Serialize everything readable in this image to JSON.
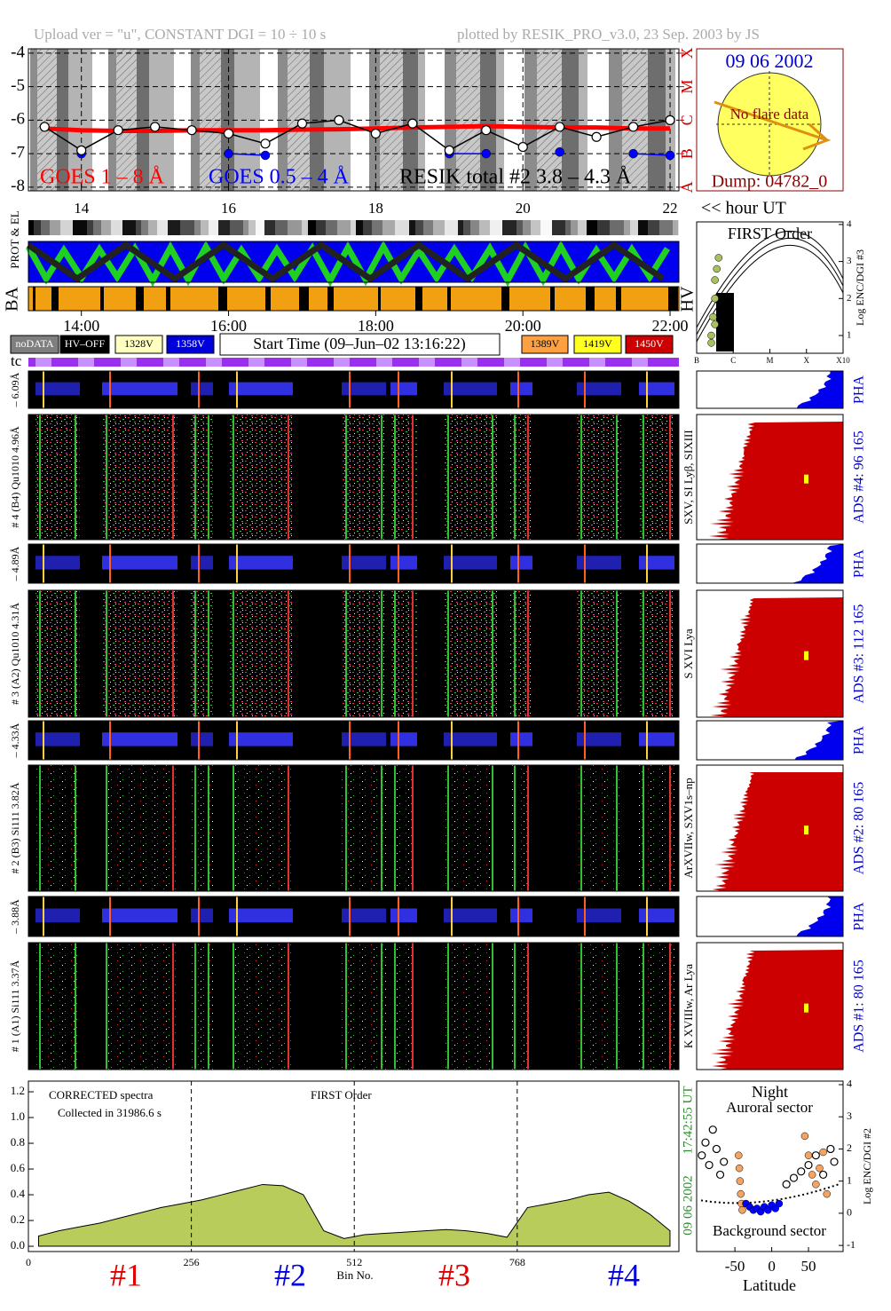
{
  "header": {
    "upload": "Upload ver = \"u\", CONSTANT  DGI =  10 ÷  10 s",
    "plotted": "plotted by RESIK_PRO_v3.0, 23 Sep. 2003 by JS"
  },
  "chart_data": [
    {
      "type": "line",
      "xlabel": "<< hour UT",
      "grid": true,
      "x": [
        13.5,
        14,
        14.5,
        15,
        15.5,
        16,
        16.5,
        17,
        17.5,
        18,
        18.5,
        19,
        19.5,
        20,
        20.5,
        21,
        21.5,
        22
      ],
      "series": [
        {
          "name": "GOES 1 – 8 Å",
          "color": "#ff0000",
          "marker": "none",
          "values": [
            -6.25,
            -6.3,
            -6.32,
            -6.32,
            -6.3,
            -6.3,
            -6.3,
            -6.28,
            -6.27,
            -6.25,
            -6.22,
            -6.2,
            -6.18,
            -6.2,
            -6.22,
            -6.22,
            -6.25,
            -6.25
          ]
        },
        {
          "name": "GOES 0.5 – 4 Å",
          "color": "#0000ff",
          "marker": "filled",
          "values": [
            null,
            -7.0,
            null,
            null,
            null,
            -7.0,
            -7.05,
            null,
            null,
            null,
            null,
            -7.0,
            -7.0,
            null,
            -6.95,
            null,
            -7.0,
            -7.05
          ]
        },
        {
          "name": "RESIK total #2  3.8 – 4.3 Å",
          "color": "#000000",
          "marker": "open",
          "values": [
            -6.2,
            -6.9,
            -6.3,
            -6.2,
            -6.3,
            -6.4,
            -6.7,
            -6.1,
            -6.0,
            -6.4,
            -6.1,
            -6.9,
            -6.3,
            -6.8,
            -6.2,
            -6.5,
            -6.2,
            -6.0
          ]
        }
      ],
      "xlim": [
        13.28,
        22.12
      ],
      "xticks": [
        14,
        16,
        18,
        20,
        22
      ],
      "ylim": [
        -8.11,
        -3.87
      ],
      "yticks": [
        -4,
        -5,
        -6,
        -7,
        -8
      ],
      "y2lim": [
        -8.11,
        -3.87
      ],
      "y2ticks": [
        {
          "value": -8,
          "label": "A"
        },
        {
          "value": -7,
          "label": "B"
        },
        {
          "value": -6,
          "label": "C"
        },
        {
          "value": -5,
          "label": "M"
        },
        {
          "value": -4,
          "label": "X"
        }
      ],
      "y2color": "#cc0000"
    },
    {
      "type": "area",
      "xlabel": "Bin No.",
      "color": "#b8cc5c",
      "annotations": [
        "CORRECTED spectra",
        "Collected in 31986.6 s",
        "FIRST Order"
      ],
      "channel_labels": [
        {
          "label": "#1",
          "color": "#e00000"
        },
        {
          "label": "#2",
          "color": "#0000e0"
        },
        {
          "label": "#3",
          "color": "#e00000"
        },
        {
          "label": "#4",
          "color": "#0000e0"
        }
      ],
      "date": "09 06 2002",
      "time": "17:42:55 UT",
      "date_color": "#2e8b2e",
      "x": [
        16,
        48,
        80,
        112,
        144,
        176,
        208,
        240,
        272,
        304,
        336,
        368,
        400,
        432,
        464,
        496,
        528,
        560,
        592,
        624,
        656,
        688,
        720,
        752,
        784,
        816,
        848,
        880,
        912,
        944,
        976,
        1008
      ],
      "values": [
        0.08,
        0.12,
        0.15,
        0.18,
        0.22,
        0.26,
        0.3,
        0.33,
        0.36,
        0.4,
        0.44,
        0.48,
        0.47,
        0.4,
        0.12,
        0.06,
        0.09,
        0.1,
        0.11,
        0.12,
        0.13,
        0.12,
        0.1,
        0.07,
        0.3,
        0.33,
        0.36,
        0.4,
        0.42,
        0.35,
        0.25,
        0.12
      ],
      "xlim": [
        0,
        1022
      ],
      "xticks": [
        0,
        256,
        512,
        768
      ],
      "ylim": [
        -0.041,
        1.283
      ],
      "yticks": [
        {
          "value": 0,
          "label": "0.0"
        },
        0.2,
        0.4,
        0.6,
        0.8,
        {
          "value": 1,
          "label": "1.0"
        },
        1.2
      ]
    },
    {
      "type": "scatter",
      "title": "Night",
      "annotations": [
        "Auroral sector",
        "Background sector"
      ],
      "xlabel": "Latitude",
      "ylabel": "Log ENC/DGI #2",
      "series": [
        {
          "color": "#000000",
          "marker": "open",
          "x": [
            -95,
            -90,
            -85,
            -80,
            -75,
            -70,
            -65,
            20,
            30,
            40,
            50,
            60,
            70,
            80,
            85
          ],
          "values": [
            1.8,
            2.2,
            1.5,
            2.6,
            2.0,
            1.2,
            1.6,
            0.9,
            1.1,
            1.3,
            1.5,
            1.8,
            1.2,
            2.0,
            1.6
          ]
        },
        {
          "color": "#f4a460",
          "marker": "filled",
          "x": [
            -45,
            -44,
            -43,
            -42,
            -41,
            -40,
            45,
            50,
            55,
            60,
            65,
            70,
            75
          ],
          "values": [
            1.8,
            1.4,
            1.0,
            0.6,
            0.3,
            0.1,
            2.4,
            1.8,
            1.2,
            0.9,
            1.4,
            1.9,
            0.6
          ]
        },
        {
          "color": "#0000ff",
          "marker": "filled",
          "x": [
            -35,
            -30,
            -25,
            -20,
            -15,
            -10,
            -5,
            0,
            5,
            10
          ],
          "values": [
            0.3,
            0.2,
            0.1,
            0.15,
            0.05,
            0.2,
            0.1,
            0.25,
            0.15,
            0.3
          ]
        }
      ],
      "xlim": [
        -102,
        97
      ],
      "xticks": [
        -50,
        0,
        50
      ],
      "ylim": [
        -1.19,
        4.11
      ],
      "yticks": [
        -1,
        0,
        1,
        2,
        3,
        4
      ]
    },
    {
      "type": "scatter",
      "title": "FIRST Order",
      "ylabel": "Log ENC/DGI #3",
      "series": [
        {
          "color": "#a8c060",
          "marker": "filled",
          "x": [
            -6.6,
            -6.55,
            -6.5,
            -6.5,
            -6.45,
            -6.4,
            -6.6,
            -6.5
          ],
          "values": [
            1.0,
            1.5,
            2.0,
            2.5,
            2.8,
            3.1,
            0.8,
            1.3
          ]
        }
      ],
      "xlim": [
        -7,
        -3
      ],
      "xticks": [
        {
          "value": -7,
          "label": "B"
        },
        {
          "value": -6,
          "label": "C"
        },
        {
          "value": -5,
          "label": "M"
        },
        {
          "value": -4,
          "label": "X"
        },
        {
          "value": -3,
          "label": "X10"
        }
      ],
      "ylim": [
        0.52,
        4.07
      ],
      "yticks": [
        1,
        2,
        3,
        4
      ]
    }
  ],
  "sun": {
    "date": "09 06 2002",
    "note": "No flare data",
    "dump": "Dump: 04782_0"
  },
  "strips": {
    "labels": [
      "PROT & EL",
      "BA",
      "HV"
    ],
    "xlim": [
      13.28,
      22.12
    ],
    "xticks": [
      {
        "value": 14,
        "label": "14:00"
      },
      {
        "value": 16,
        "label": "16:00"
      },
      {
        "value": 18,
        "label": "18:00"
      },
      {
        "value": 20,
        "label": "20:00"
      },
      {
        "value": 22,
        "label": "22:00"
      }
    ]
  },
  "legend_boxes": [
    {
      "label": "noDATA",
      "color": "#7f7f7f",
      "text_color": "#ffffff"
    },
    {
      "label": "HV–OFF",
      "color": "#000000",
      "text_color": "#ffffff"
    },
    {
      "label": "1328V",
      "color": "#ffffc0",
      "text_color": "#000000"
    },
    {
      "label": "1358V",
      "color": "#0000dd",
      "text_color": "#ffffff"
    },
    {
      "label": "1389V",
      "color": "#ffa040",
      "text_color": "#000000"
    },
    {
      "label": "1419V",
      "color": "#ffff20",
      "text_color": "#000000"
    },
    {
      "label": "1450V",
      "color": "#cc0000",
      "text_color": "#ffffff"
    }
  ],
  "start_time": "Start Time (09–Jun–02 13:16:22)",
  "tc": "tc",
  "channels": [
    {
      "label": "# 4 (B4) Qu1010 4.96Å",
      "pha_label": "– 6.09Å",
      "lines": "SXV, SI Lyβ, SIXIII",
      "ads": "ADS #4:   96 165",
      "pha": "PHA"
    },
    {
      "label": "# 3 (A2) Qu1010  4.31Å",
      "pha_label": "– 4.89Å",
      "lines": "S XVI Lya",
      "ads": "ADS #3:  112 165",
      "pha": "PHA"
    },
    {
      "label": "# 2 (B3) Si111  3.82Å",
      "pha_label": "– 4.33Å",
      "lines": "ArXVIIw, SXV1s–np",
      "ads": "ADS #2:   80 165",
      "pha": "PHA"
    },
    {
      "label": "# 1 (A1) Si111  3.37Å",
      "pha_label": "– 3.88Å",
      "lines": "K XVIIIw, Ar Lya",
      "ads": "ADS #1:   80 165",
      "pha": "PHA"
    }
  ]
}
